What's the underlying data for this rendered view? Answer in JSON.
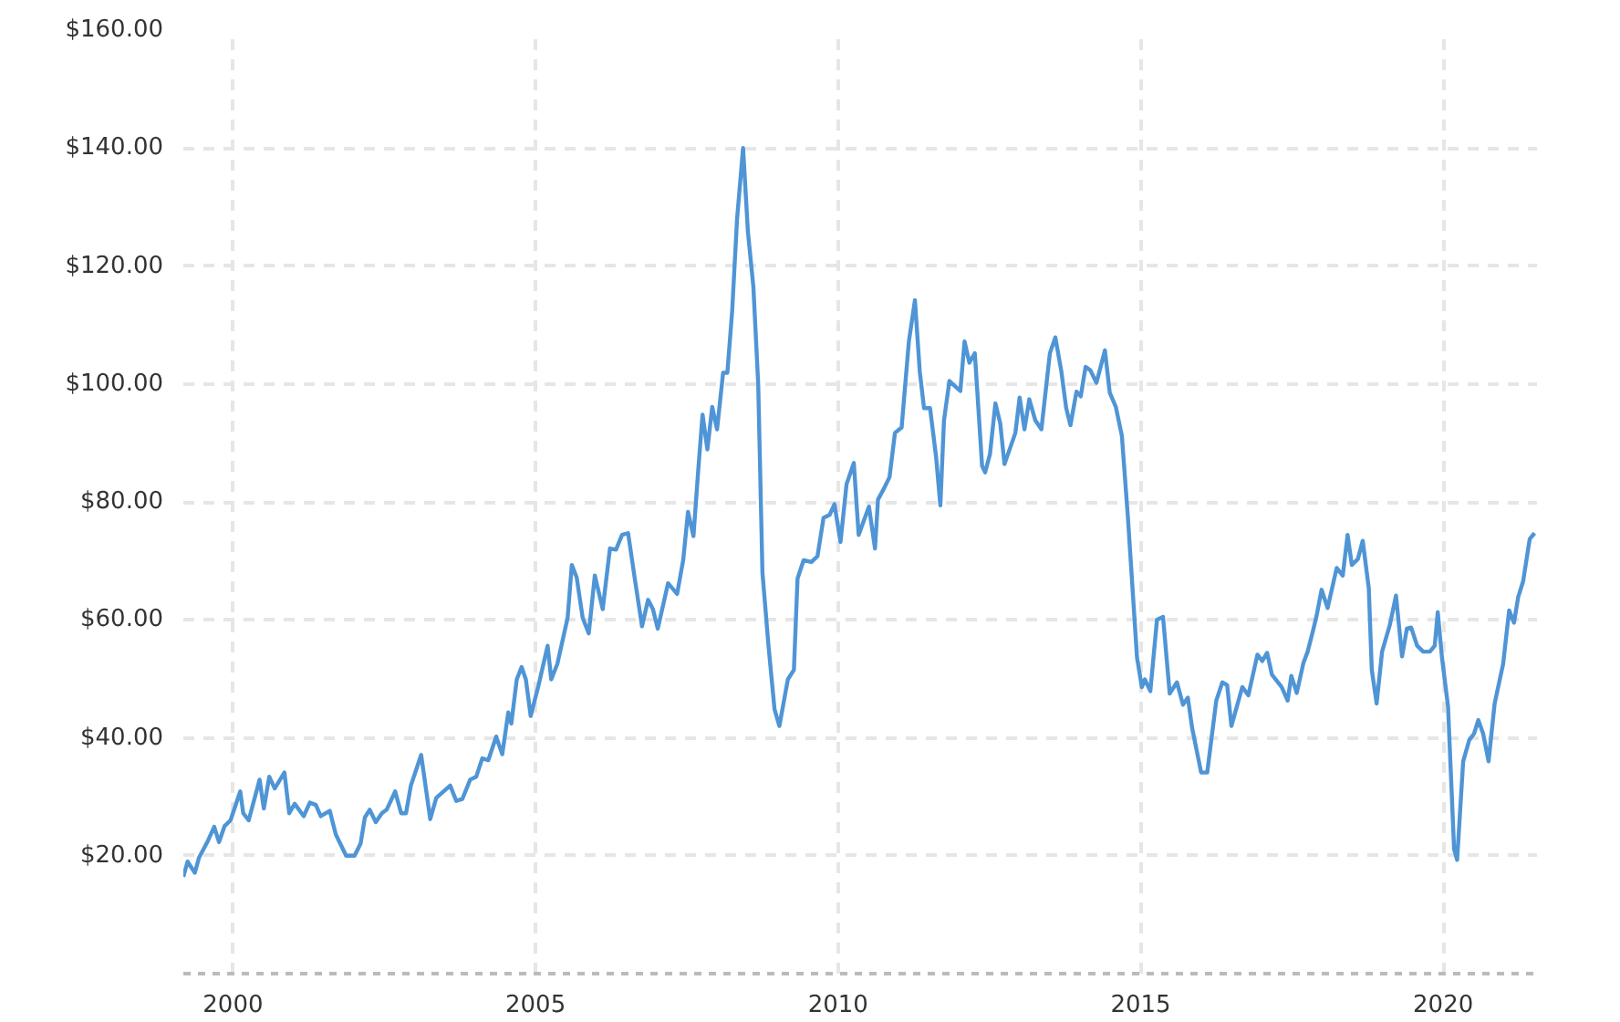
{
  "chart_data": {
    "type": "line",
    "grid": true,
    "marker": "none",
    "line_style": "solid",
    "xlim": [
      1999.18,
      2021.55
    ],
    "ylim": [
      0,
      160
    ],
    "xticks": [
      2000,
      2005,
      2010,
      2015,
      2020
    ],
    "yticks": [
      {
        "value": 20,
        "label": "$20.00"
      },
      {
        "value": 40,
        "label": "$40.00"
      },
      {
        "value": 60,
        "label": "$60.00"
      },
      {
        "value": 80,
        "label": "$80.00"
      },
      {
        "value": 100,
        "label": "$100.00"
      },
      {
        "value": 120,
        "label": "$120.00"
      },
      {
        "value": 140,
        "label": "$140.00"
      },
      {
        "value": 160,
        "label": "$160.00"
      }
    ],
    "series": [
      {
        "color": "#4f95d6",
        "x": [
          1999.18,
          1999.25,
          1999.37,
          1999.44,
          1999.59,
          1999.69,
          1999.77,
          1999.86,
          1999.96,
          2000.12,
          2000.17,
          2000.26,
          2000.44,
          2000.51,
          2000.6,
          2000.69,
          2000.85,
          2000.93,
          2001.02,
          2001.17,
          2001.27,
          2001.37,
          2001.45,
          2001.6,
          2001.7,
          2001.87,
          2002.01,
          2002.11,
          2002.18,
          2002.26,
          2002.36,
          2002.46,
          2002.54,
          2002.68,
          2002.78,
          2002.86,
          2002.94,
          2003.11,
          2003.26,
          2003.36,
          2003.59,
          2003.69,
          2003.79,
          2003.92,
          2004.02,
          2004.12,
          2004.22,
          2004.35,
          2004.45,
          2004.55,
          2004.6,
          2004.69,
          2004.77,
          2004.84,
          2004.92,
          2005.05,
          2005.2,
          2005.26,
          2005.36,
          2005.53,
          2005.6,
          2005.68,
          2005.78,
          2005.88,
          2005.98,
          2006.11,
          2006.23,
          2006.33,
          2006.43,
          2006.53,
          2006.64,
          2006.76,
          2006.86,
          2006.94,
          2007.02,
          2007.19,
          2007.34,
          2007.44,
          2007.52,
          2007.61,
          2007.69,
          2007.76,
          2007.84,
          2007.92,
          2008.0,
          2008.1,
          2008.17,
          2008.25,
          2008.33,
          2008.43,
          2008.51,
          2008.6,
          2008.68,
          2008.75,
          2008.85,
          2008.95,
          2009.03,
          2009.17,
          2009.27,
          2009.33,
          2009.43,
          2009.56,
          2009.66,
          2009.76,
          2009.86,
          2009.94,
          2010.04,
          2010.14,
          2010.26,
          2010.34,
          2010.51,
          2010.61,
          2010.66,
          2010.76,
          2010.85,
          2010.94,
          2011.05,
          2011.17,
          2011.27,
          2011.35,
          2011.42,
          2011.52,
          2011.62,
          2011.69,
          2011.75,
          2011.84,
          2012.02,
          2012.09,
          2012.17,
          2012.26,
          2012.38,
          2012.43,
          2012.51,
          2012.6,
          2012.68,
          2012.75,
          2012.93,
          2013.0,
          2013.08,
          2013.16,
          2013.26,
          2013.36,
          2013.5,
          2013.59,
          2013.69,
          2013.77,
          2013.84,
          2013.94,
          2014.01,
          2014.09,
          2014.17,
          2014.27,
          2014.41,
          2014.49,
          2014.59,
          2014.69,
          2014.79,
          2014.94,
          2015.02,
          2015.07,
          2015.16,
          2015.27,
          2015.37,
          2015.48,
          2015.6,
          2015.7,
          2015.78,
          2015.85,
          2016.0,
          2016.1,
          2016.25,
          2016.35,
          2016.43,
          2016.5,
          2016.68,
          2016.78,
          2016.93,
          2017.01,
          2017.09,
          2017.17,
          2017.33,
          2017.43,
          2017.49,
          2017.58,
          2017.69,
          2017.76,
          2017.85,
          2017.91,
          2017.99,
          2018.09,
          2018.24,
          2018.34,
          2018.42,
          2018.49,
          2018.59,
          2018.67,
          2018.77,
          2018.82,
          2018.9,
          2018.99,
          2019.12,
          2019.22,
          2019.32,
          2019.4,
          2019.47,
          2019.57,
          2019.67,
          2019.78,
          2019.86,
          2019.91,
          2019.98,
          2020.08,
          2020.18,
          2020.23,
          2020.33,
          2020.43,
          2020.51,
          2020.58,
          2020.66,
          2020.75,
          2020.85,
          2020.99,
          2021.09,
          2021.17,
          2021.24,
          2021.32,
          2021.43,
          2021.51
        ],
        "values": [
          16.4,
          19.0,
          17.1,
          19.7,
          22.6,
          24.9,
          22.3,
          25.0,
          26.0,
          30.9,
          27.2,
          26.0,
          32.9,
          28.0,
          33.4,
          31.4,
          34.1,
          27.2,
          28.8,
          26.7,
          29.0,
          28.6,
          26.7,
          27.6,
          23.6,
          20.0,
          20.0,
          22.1,
          26.5,
          27.8,
          25.7,
          27.2,
          27.8,
          30.9,
          27.2,
          27.2,
          31.9,
          37.1,
          26.2,
          29.8,
          31.9,
          29.3,
          29.6,
          32.9,
          33.4,
          36.5,
          36.2,
          40.2,
          37.2,
          44.3,
          42.4,
          49.9,
          52.0,
          49.9,
          43.7,
          48.9,
          55.6,
          49.9,
          52.5,
          60.3,
          69.3,
          67.2,
          60.3,
          57.7,
          67.5,
          61.8,
          72.1,
          71.9,
          74.4,
          74.7,
          67.0,
          58.9,
          63.4,
          61.8,
          58.5,
          66.2,
          64.4,
          70.1,
          78.3,
          74.2,
          85.5,
          94.8,
          88.9,
          96.1,
          92.3,
          101.9,
          101.9,
          112.4,
          127.9,
          140.0,
          125.8,
          116.5,
          100.0,
          68.0,
          55.6,
          44.8,
          42.0,
          49.9,
          51.5,
          67.0,
          70.1,
          69.8,
          70.8,
          77.3,
          77.8,
          79.6,
          73.2,
          83.0,
          86.6,
          74.4,
          79.2,
          72.1,
          80.4,
          82.3,
          84.2,
          91.7,
          92.6,
          107.2,
          114.2,
          102.1,
          95.9,
          95.9,
          87.6,
          79.4,
          93.8,
          100.5,
          98.8,
          107.2,
          103.6,
          105.2,
          86.1,
          85.0,
          88.1,
          96.7,
          93.3,
          86.4,
          91.7,
          97.7,
          92.3,
          97.4,
          93.8,
          92.3,
          105.2,
          107.9,
          102.1,
          95.9,
          93.0,
          98.7,
          97.9,
          102.9,
          102.3,
          100.2,
          105.7,
          98.5,
          96.1,
          91.2,
          77.3,
          53.6,
          48.6,
          49.9,
          47.9,
          60.0,
          60.5,
          47.5,
          49.4,
          45.6,
          46.8,
          41.7,
          34.1,
          34.1,
          46.3,
          49.4,
          48.9,
          42.0,
          48.6,
          47.2,
          54.1,
          53.0,
          54.4,
          50.7,
          48.6,
          46.3,
          50.5,
          47.6,
          52.7,
          54.6,
          58.2,
          60.8,
          65.1,
          62.0,
          68.8,
          67.5,
          74.4,
          69.3,
          70.3,
          73.4,
          65.4,
          51.5,
          45.8,
          54.6,
          59.2,
          64.1,
          53.8,
          58.5,
          58.7,
          55.6,
          54.6,
          54.6,
          55.6,
          61.3,
          53.6,
          45.3,
          21.1,
          19.3,
          36.0,
          39.6,
          40.7,
          43.0,
          40.7,
          36.0,
          45.8,
          52.5,
          61.6,
          59.5,
          63.9,
          66.5,
          73.7,
          74.7
        ]
      }
    ]
  }
}
